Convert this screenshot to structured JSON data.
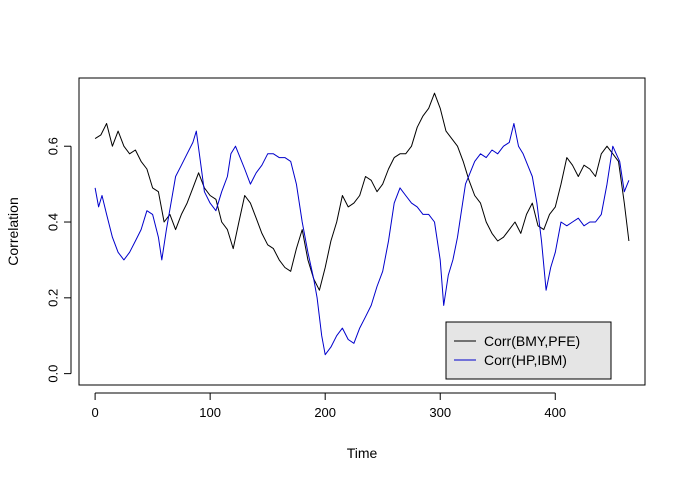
{
  "chart_data": {
    "type": "line",
    "title": "",
    "xlabel": "Time",
    "ylabel": "Correlation",
    "xlim": [
      -14,
      478
    ],
    "ylim": [
      -0.03,
      0.78
    ],
    "x_ticks": [
      0,
      100,
      200,
      300,
      400
    ],
    "x_tick_labels": [
      "0",
      "100",
      "200",
      "300",
      "400"
    ],
    "y_ticks": [
      0.0,
      0.2,
      0.4,
      0.6
    ],
    "y_tick_labels": [
      "0.0",
      "0.2",
      "0.4",
      "0.6"
    ],
    "grid": false,
    "legend": {
      "position": "bottom-right",
      "background": "#e5e5e5",
      "entries": [
        "Corr(BMY,PFE)",
        "Corr(HP,IBM)"
      ]
    },
    "series": [
      {
        "name": "Corr(BMY,PFE)",
        "color": "#000000",
        "points": [
          [
            0,
            0.62
          ],
          [
            5,
            0.63
          ],
          [
            10,
            0.66
          ],
          [
            15,
            0.6
          ],
          [
            20,
            0.64
          ],
          [
            25,
            0.6
          ],
          [
            30,
            0.58
          ],
          [
            35,
            0.59
          ],
          [
            40,
            0.56
          ],
          [
            45,
            0.54
          ],
          [
            50,
            0.49
          ],
          [
            55,
            0.48
          ],
          [
            60,
            0.4
          ],
          [
            65,
            0.42
          ],
          [
            70,
            0.38
          ],
          [
            75,
            0.42
          ],
          [
            80,
            0.45
          ],
          [
            85,
            0.49
          ],
          [
            90,
            0.53
          ],
          [
            95,
            0.49
          ],
          [
            100,
            0.47
          ],
          [
            105,
            0.46
          ],
          [
            110,
            0.4
          ],
          [
            115,
            0.38
          ],
          [
            120,
            0.33
          ],
          [
            125,
            0.4
          ],
          [
            130,
            0.47
          ],
          [
            135,
            0.45
          ],
          [
            140,
            0.41
          ],
          [
            145,
            0.37
          ],
          [
            150,
            0.34
          ],
          [
            155,
            0.33
          ],
          [
            160,
            0.3
          ],
          [
            165,
            0.28
          ],
          [
            170,
            0.27
          ],
          [
            175,
            0.33
          ],
          [
            180,
            0.38
          ],
          [
            185,
            0.3
          ],
          [
            190,
            0.25
          ],
          [
            195,
            0.22
          ],
          [
            200,
            0.28
          ],
          [
            205,
            0.35
          ],
          [
            210,
            0.4
          ],
          [
            215,
            0.47
          ],
          [
            220,
            0.44
          ],
          [
            225,
            0.45
          ],
          [
            230,
            0.47
          ],
          [
            235,
            0.52
          ],
          [
            240,
            0.51
          ],
          [
            245,
            0.48
          ],
          [
            250,
            0.5
          ],
          [
            255,
            0.54
          ],
          [
            260,
            0.57
          ],
          [
            265,
            0.58
          ],
          [
            270,
            0.58
          ],
          [
            275,
            0.6
          ],
          [
            280,
            0.65
          ],
          [
            285,
            0.68
          ],
          [
            290,
            0.7
          ],
          [
            295,
            0.74
          ],
          [
            300,
            0.7
          ],
          [
            305,
            0.64
          ],
          [
            310,
            0.62
          ],
          [
            315,
            0.6
          ],
          [
            320,
            0.56
          ],
          [
            325,
            0.51
          ],
          [
            330,
            0.47
          ],
          [
            335,
            0.45
          ],
          [
            340,
            0.4
          ],
          [
            345,
            0.37
          ],
          [
            350,
            0.35
          ],
          [
            355,
            0.36
          ],
          [
            360,
            0.38
          ],
          [
            365,
            0.4
          ],
          [
            370,
            0.37
          ],
          [
            375,
            0.42
          ],
          [
            380,
            0.45
          ],
          [
            385,
            0.39
          ],
          [
            390,
            0.38
          ],
          [
            395,
            0.42
          ],
          [
            400,
            0.44
          ],
          [
            405,
            0.5
          ],
          [
            410,
            0.57
          ],
          [
            415,
            0.55
          ],
          [
            420,
            0.52
          ],
          [
            425,
            0.55
          ],
          [
            430,
            0.54
          ],
          [
            435,
            0.52
          ],
          [
            440,
            0.58
          ],
          [
            445,
            0.6
          ],
          [
            450,
            0.58
          ],
          [
            455,
            0.56
          ],
          [
            460,
            0.45
          ],
          [
            464,
            0.35
          ]
        ]
      },
      {
        "name": "Corr(HP,IBM)",
        "color": "#0000cc",
        "points": [
          [
            0,
            0.49
          ],
          [
            3,
            0.44
          ],
          [
            6,
            0.47
          ],
          [
            10,
            0.42
          ],
          [
            15,
            0.36
          ],
          [
            20,
            0.32
          ],
          [
            25,
            0.3
          ],
          [
            30,
            0.32
          ],
          [
            35,
            0.35
          ],
          [
            40,
            0.38
          ],
          [
            45,
            0.43
          ],
          [
            50,
            0.42
          ],
          [
            55,
            0.36
          ],
          [
            58,
            0.3
          ],
          [
            62,
            0.38
          ],
          [
            66,
            0.45
          ],
          [
            70,
            0.52
          ],
          [
            75,
            0.55
          ],
          [
            80,
            0.58
          ],
          [
            85,
            0.61
          ],
          [
            88,
            0.64
          ],
          [
            92,
            0.55
          ],
          [
            95,
            0.48
          ],
          [
            100,
            0.45
          ],
          [
            105,
            0.43
          ],
          [
            110,
            0.48
          ],
          [
            115,
            0.52
          ],
          [
            118,
            0.58
          ],
          [
            122,
            0.6
          ],
          [
            126,
            0.57
          ],
          [
            130,
            0.54
          ],
          [
            135,
            0.5
          ],
          [
            140,
            0.53
          ],
          [
            145,
            0.55
          ],
          [
            150,
            0.58
          ],
          [
            155,
            0.58
          ],
          [
            160,
            0.57
          ],
          [
            165,
            0.57
          ],
          [
            170,
            0.56
          ],
          [
            175,
            0.5
          ],
          [
            180,
            0.4
          ],
          [
            185,
            0.32
          ],
          [
            190,
            0.25
          ],
          [
            193,
            0.2
          ],
          [
            197,
            0.1
          ],
          [
            200,
            0.05
          ],
          [
            205,
            0.07
          ],
          [
            210,
            0.1
          ],
          [
            215,
            0.12
          ],
          [
            220,
            0.09
          ],
          [
            225,
            0.08
          ],
          [
            230,
            0.12
          ],
          [
            235,
            0.15
          ],
          [
            240,
            0.18
          ],
          [
            245,
            0.23
          ],
          [
            250,
            0.27
          ],
          [
            255,
            0.35
          ],
          [
            260,
            0.45
          ],
          [
            265,
            0.49
          ],
          [
            270,
            0.47
          ],
          [
            275,
            0.45
          ],
          [
            280,
            0.44
          ],
          [
            285,
            0.42
          ],
          [
            290,
            0.42
          ],
          [
            295,
            0.4
          ],
          [
            300,
            0.3
          ],
          [
            303,
            0.18
          ],
          [
            307,
            0.26
          ],
          [
            311,
            0.3
          ],
          [
            315,
            0.36
          ],
          [
            318,
            0.42
          ],
          [
            322,
            0.5
          ],
          [
            326,
            0.53
          ],
          [
            330,
            0.56
          ],
          [
            335,
            0.58
          ],
          [
            340,
            0.57
          ],
          [
            345,
            0.59
          ],
          [
            350,
            0.58
          ],
          [
            355,
            0.6
          ],
          [
            360,
            0.61
          ],
          [
            364,
            0.66
          ],
          [
            368,
            0.6
          ],
          [
            372,
            0.58
          ],
          [
            376,
            0.55
          ],
          [
            380,
            0.52
          ],
          [
            384,
            0.45
          ],
          [
            388,
            0.35
          ],
          [
            392,
            0.22
          ],
          [
            396,
            0.28
          ],
          [
            400,
            0.32
          ],
          [
            405,
            0.4
          ],
          [
            410,
            0.39
          ],
          [
            415,
            0.4
          ],
          [
            420,
            0.41
          ],
          [
            425,
            0.39
          ],
          [
            430,
            0.4
          ],
          [
            435,
            0.4
          ],
          [
            440,
            0.42
          ],
          [
            445,
            0.5
          ],
          [
            450,
            0.6
          ],
          [
            453,
            0.58
          ],
          [
            456,
            0.56
          ],
          [
            460,
            0.48
          ],
          [
            464,
            0.51
          ]
        ]
      }
    ]
  }
}
